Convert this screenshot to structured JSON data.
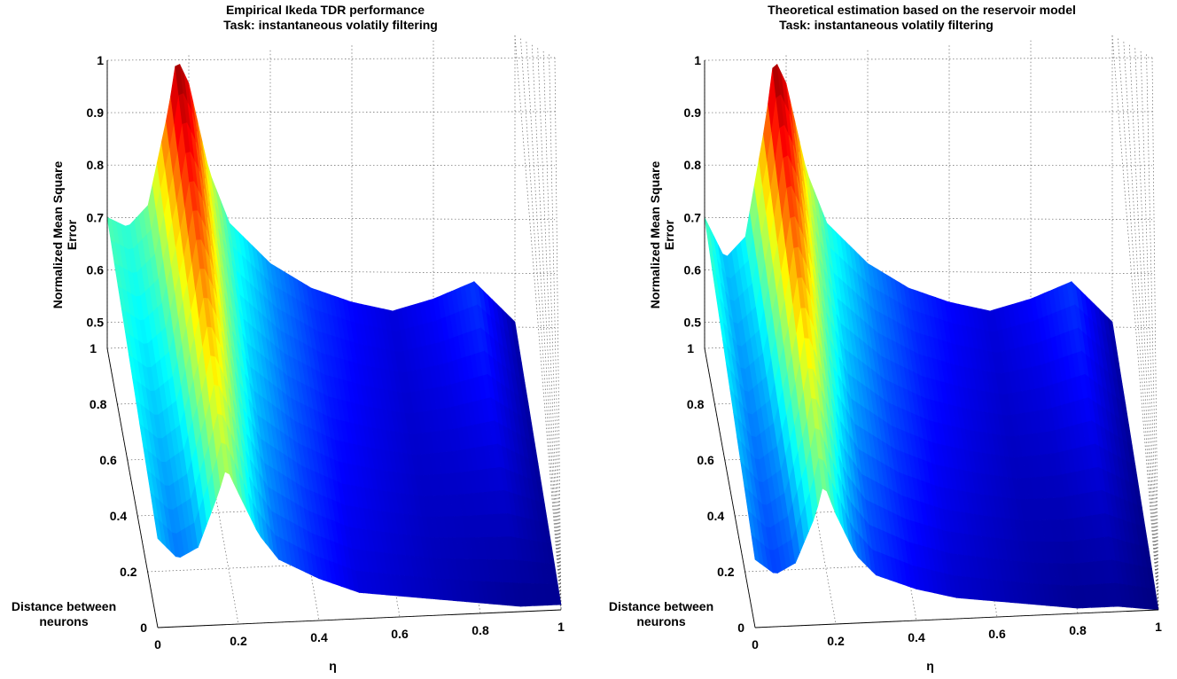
{
  "chart_data": [
    {
      "type": "surface",
      "title": [
        "Empirical Ikeda TDR performance",
        "Task: instantaneous volatily filtering"
      ],
      "xlabel": "η",
      "ylabel": "Distance between neurons",
      "zlabel": "Normalized Mean Square Error",
      "x_ticks": [
        "0",
        "0.2",
        "0.4",
        "0.6",
        "0.8",
        "1"
      ],
      "y_ticks": [
        "0",
        "0.2",
        "0.4",
        "0.6",
        "0.8",
        "1"
      ],
      "z_ticks": [
        "0.5",
        "0.6",
        "0.7",
        "0.8",
        "0.9",
        "1"
      ],
      "xlim": [
        0,
        1
      ],
      "ylim": [
        0,
        1
      ],
      "zlim": [
        0.45,
        1
      ],
      "colormap": "jet",
      "peak": {
        "eta": 0.17,
        "nmse": 1.0
      },
      "profile_far": {
        "eta": [
          0,
          0.05,
          0.1,
          0.15,
          0.17,
          0.2,
          0.25,
          0.3,
          0.4,
          0.5,
          0.6,
          0.7,
          0.8,
          0.9,
          1
        ],
        "nmse": [
          0.7,
          0.68,
          0.72,
          0.9,
          1.0,
          0.95,
          0.78,
          0.68,
          0.6,
          0.55,
          0.52,
          0.5,
          0.52,
          0.55,
          0.47
        ]
      },
      "profile_near": {
        "eta": [
          0,
          0.05,
          0.1,
          0.15,
          0.17,
          0.2,
          0.25,
          0.3,
          0.4,
          0.5,
          0.6,
          0.7,
          0.8,
          0.9,
          1
        ],
        "nmse": [
          0.62,
          0.58,
          0.6,
          0.7,
          0.75,
          0.7,
          0.62,
          0.57,
          0.53,
          0.5,
          0.49,
          0.48,
          0.47,
          0.46,
          0.46
        ]
      }
    },
    {
      "type": "surface",
      "title": [
        "Theoretical estimation based on the reservoir model",
        "Task: instantaneous volatily filtering"
      ],
      "xlabel": "η",
      "ylabel": "Distance between neurons",
      "zlabel": "Normalized Mean Square Error",
      "x_ticks": [
        "0",
        "0.2",
        "0.4",
        "0.6",
        "0.8",
        "1"
      ],
      "y_ticks": [
        "0",
        "0.2",
        "0.4",
        "0.6",
        "0.8",
        "1"
      ],
      "z_ticks": [
        "0.5",
        "0.6",
        "0.7",
        "0.8",
        "0.9",
        "1"
      ],
      "xlim": [
        0,
        1
      ],
      "ylim": [
        0,
        1
      ],
      "zlim": [
        0.45,
        1
      ],
      "colormap": "jet",
      "peak": {
        "eta": 0.17,
        "nmse": 1.0
      },
      "profile_far": {
        "eta": [
          0,
          0.05,
          0.1,
          0.15,
          0.17,
          0.2,
          0.25,
          0.3,
          0.4,
          0.5,
          0.6,
          0.7,
          0.8,
          0.9,
          1
        ],
        "nmse": [
          0.7,
          0.62,
          0.66,
          0.88,
          1.0,
          0.95,
          0.78,
          0.68,
          0.6,
          0.55,
          0.52,
          0.5,
          0.52,
          0.55,
          0.47
        ]
      },
      "profile_near": {
        "eta": [
          0,
          0.05,
          0.1,
          0.15,
          0.17,
          0.2,
          0.25,
          0.3,
          0.4,
          0.5,
          0.6,
          0.7,
          0.8,
          0.9,
          1
        ],
        "nmse": [
          0.58,
          0.55,
          0.57,
          0.66,
          0.72,
          0.66,
          0.58,
          0.54,
          0.51,
          0.49,
          0.48,
          0.47,
          0.46,
          0.46,
          0.45
        ]
      }
    }
  ]
}
